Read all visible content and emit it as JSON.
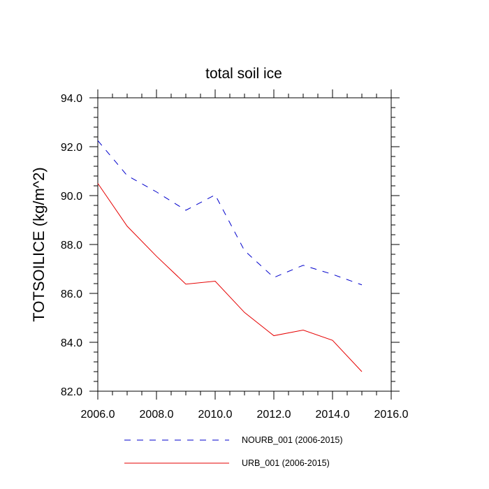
{
  "chart_data": {
    "type": "line",
    "title": "total soil ice",
    "xlabel": "",
    "ylabel": "TOTSOILICE  (kg/m^2)",
    "xlim": [
      2006,
      2016
    ],
    "ylim": [
      82,
      94
    ],
    "x_ticks": [
      2006,
      2008,
      2010,
      2012,
      2014,
      2016
    ],
    "x_tick_labels": [
      "2006.0",
      "2008.0",
      "2010.0",
      "2012.0",
      "2014.0",
      "2016.0"
    ],
    "y_ticks": [
      82,
      84,
      86,
      88,
      90,
      92,
      94
    ],
    "y_tick_labels": [
      "82.0",
      "84.0",
      "86.0",
      "88.0",
      "90.0",
      "92.0",
      "94.0"
    ],
    "grid": false,
    "legend_position": "bottom",
    "x": [
      2006,
      2007,
      2008,
      2009,
      2010,
      2011,
      2012,
      2013,
      2014,
      2015
    ],
    "series": [
      {
        "name": "NOURB_001 (2006-2015)",
        "color": "#0000cc",
        "dash": "dashed",
        "values": [
          92.25,
          90.82,
          90.15,
          89.4,
          90.03,
          87.75,
          86.65,
          87.15,
          86.78,
          86.35
        ]
      },
      {
        "name": "URB_001 (2006-2015)",
        "color": "#e60000",
        "dash": "solid",
        "values": [
          90.5,
          88.75,
          87.52,
          86.38,
          86.5,
          85.22,
          84.27,
          84.5,
          84.08,
          82.8
        ]
      }
    ]
  }
}
